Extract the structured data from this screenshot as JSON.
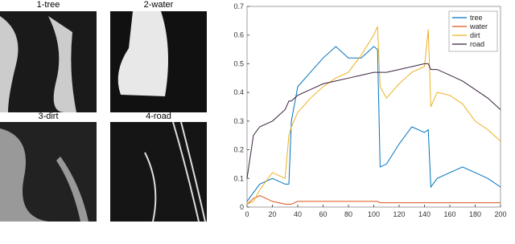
{
  "images": [
    {
      "label": "1-tree"
    },
    {
      "label": "2-water"
    },
    {
      "label": "3-dirt"
    },
    {
      "label": "4-road"
    }
  ],
  "chart_data": {
    "type": "line",
    "x": [
      0,
      5,
      10,
      20,
      30,
      33,
      35,
      40,
      50,
      60,
      70,
      80,
      90,
      100,
      103,
      105,
      110,
      120,
      130,
      140,
      143,
      145,
      150,
      160,
      170,
      180,
      190,
      200
    ],
    "series": [
      {
        "name": "tree",
        "color": "#0072bd",
        "values": [
          0.02,
          0.05,
          0.08,
          0.1,
          0.08,
          0.08,
          0.3,
          0.42,
          0.47,
          0.52,
          0.56,
          0.52,
          0.52,
          0.56,
          0.55,
          0.14,
          0.15,
          0.22,
          0.28,
          0.26,
          0.27,
          0.07,
          0.1,
          0.12,
          0.14,
          0.12,
          0.1,
          0.07
        ]
      },
      {
        "name": "water",
        "color": "#d95319",
        "values": [
          0.01,
          0.03,
          0.04,
          0.02,
          0.01,
          0.01,
          0.01,
          0.02,
          0.02,
          0.02,
          0.02,
          0.02,
          0.02,
          0.02,
          0.02,
          0.015,
          0.015,
          0.015,
          0.015,
          0.015,
          0.015,
          0.015,
          0.015,
          0.015,
          0.015,
          0.015,
          0.015,
          0.015
        ]
      },
      {
        "name": "dirt",
        "color": "#edb120",
        "values": [
          0.01,
          0.02,
          0.06,
          0.12,
          0.1,
          0.25,
          0.28,
          0.33,
          0.38,
          0.42,
          0.45,
          0.47,
          0.53,
          0.6,
          0.63,
          0.42,
          0.38,
          0.43,
          0.47,
          0.49,
          0.62,
          0.35,
          0.4,
          0.39,
          0.36,
          0.3,
          0.27,
          0.23
        ]
      },
      {
        "name": "road",
        "color": "#3b2040",
        "values": [
          0.1,
          0.25,
          0.28,
          0.3,
          0.34,
          0.37,
          0.37,
          0.39,
          0.41,
          0.43,
          0.44,
          0.45,
          0.46,
          0.47,
          0.47,
          0.47,
          0.47,
          0.48,
          0.49,
          0.5,
          0.5,
          0.48,
          0.48,
          0.46,
          0.44,
          0.41,
          0.38,
          0.34
        ]
      }
    ],
    "xlim": [
      0,
      200
    ],
    "ylim": [
      0,
      0.7
    ],
    "xticks": [
      0,
      20,
      40,
      60,
      80,
      100,
      120,
      140,
      160,
      180,
      200
    ],
    "yticks": [
      0,
      0.1,
      0.2,
      0.3,
      0.4,
      0.5,
      0.6,
      0.7
    ],
    "legend": "top-right"
  }
}
